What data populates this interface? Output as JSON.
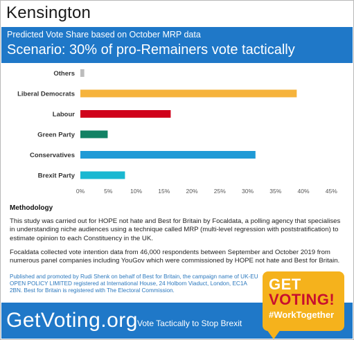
{
  "title": "Kensington",
  "banner": {
    "subtitle": "Predicted Vote Share based on October MRP data",
    "scenario": "Scenario: 30% of pro-Remainers vote tactically"
  },
  "chart_data": {
    "type": "bar",
    "orientation": "horizontal",
    "categories": [
      "Others",
      "Liberal Democrats",
      "Labour",
      "Green Party",
      "Conservatives",
      "Brexit Party"
    ],
    "values": [
      0.7,
      38.8,
      16.2,
      4.9,
      31.4,
      8.0
    ],
    "colors": [
      "#bdbdbd",
      "#f6b33c",
      "#d0021b",
      "#128264",
      "#1f9ad6",
      "#1ab8d1"
    ],
    "xlim": [
      0,
      45
    ],
    "xticks": [
      "0%",
      "5%",
      "10%",
      "15%",
      "20%",
      "25%",
      "30%",
      "35%",
      "40%",
      "45%"
    ],
    "grid": false
  },
  "methodology": {
    "heading": "Methodology",
    "p1": "This study was carried out for HOPE not hate and Best for Britain by Focaldata, a polling agency that specialises in understanding niche audiences using a technique called MRP (multi-level regression with poststratification) to estimate opinion to each Constituency in the UK.",
    "p2": "Focaldata collected vote intention data from 46,000 respondents between September and October 2019 from numerous panel companies including YouGov which were commissioned by HOPE not hate and Best for Britain."
  },
  "promoted": "Published and promoted by Rudi Shenk on behalf of Best for Britain, the campaign name of UK-EU OPEN POLICY LIMITED registered at International House, 24 Holborn Viaduct, London, EC1A 2BN. Best for Britain is registered with The Electoral Commission.",
  "badge": {
    "line1": "GET",
    "line2": "VOTING!",
    "line3": "#WorkTogether"
  },
  "footer": {
    "site": "GetVoting.org",
    "tagline": "Vote Tactically to Stop Brexit"
  }
}
